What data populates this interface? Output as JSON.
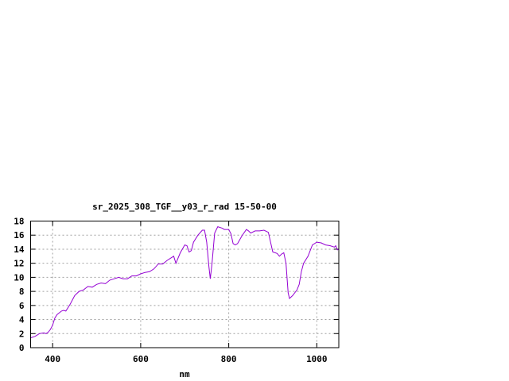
{
  "chart_data": {
    "type": "line",
    "title": "sr_2025_308_TGF__y03_r_rad 15-50-00",
    "xlabel": "nm",
    "ylabel": "",
    "xlim": [
      350,
      1050
    ],
    "ylim": [
      0,
      18
    ],
    "xticks": [
      400,
      600,
      800,
      1000
    ],
    "yticks": [
      0,
      2,
      4,
      6,
      8,
      10,
      12,
      14,
      16,
      18
    ],
    "grid": true,
    "line_color": "#9400d3",
    "series": [
      {
        "x": [
          350,
          360,
          370,
          380,
          385,
          390,
          395,
          400,
          405,
          410,
          420,
          425,
          430,
          440,
          450,
          460,
          470,
          480,
          490,
          500,
          510,
          520,
          530,
          540,
          550,
          560,
          570,
          580,
          590,
          600,
          610,
          620,
          630,
          640,
          650,
          660,
          670,
          675,
          680,
          690,
          700,
          705,
          710,
          715,
          720,
          730,
          740,
          745,
          750,
          755,
          758,
          762,
          768,
          775,
          785,
          790,
          800,
          805,
          810,
          815,
          820,
          830,
          840,
          845,
          850,
          860,
          870,
          880,
          890,
          895,
          900,
          910,
          915,
          920,
          925,
          930,
          935,
          938,
          945,
          955,
          960,
          965,
          970,
          980,
          990,
          1000,
          1010,
          1020,
          1030,
          1040,
          1043,
          1047,
          1050
        ],
        "y": [
          1.4,
          1.6,
          2.0,
          2.1,
          2.0,
          2.2,
          2.6,
          3.2,
          4.2,
          4.7,
          5.2,
          5.3,
          5.2,
          6.2,
          7.4,
          8.0,
          8.2,
          8.7,
          8.6,
          9.0,
          9.2,
          9.1,
          9.6,
          9.8,
          10.0,
          9.8,
          9.8,
          10.2,
          10.2,
          10.5,
          10.7,
          10.8,
          11.2,
          11.9,
          11.9,
          12.4,
          12.8,
          13.0,
          12.0,
          13.5,
          14.6,
          14.5,
          13.6,
          13.8,
          15.0,
          16.0,
          16.7,
          16.7,
          15.0,
          11.5,
          9.8,
          12.0,
          16.3,
          17.2,
          17.0,
          16.8,
          16.8,
          16.2,
          14.8,
          14.6,
          14.8,
          15.9,
          16.8,
          16.6,
          16.3,
          16.6,
          16.6,
          16.7,
          16.4,
          15.0,
          13.6,
          13.4,
          13.0,
          13.3,
          13.5,
          12.0,
          7.8,
          7.0,
          7.4,
          8.2,
          9.0,
          10.8,
          12.0,
          13.0,
          14.6,
          15.0,
          14.9,
          14.6,
          14.5,
          14.3,
          14.5,
          13.9,
          14.0
        ]
      }
    ]
  }
}
